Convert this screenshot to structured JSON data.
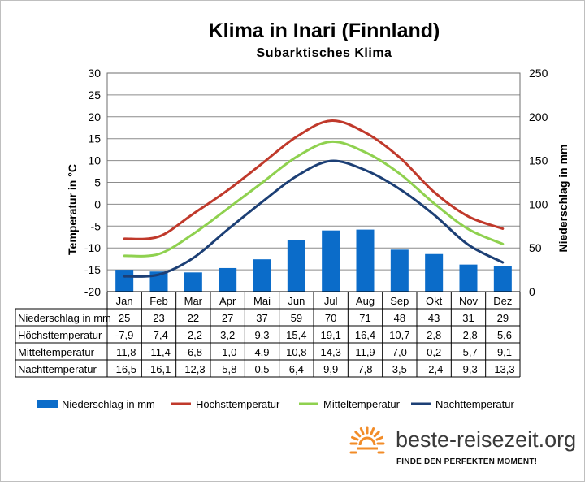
{
  "chart_data": {
    "type": "bar",
    "title": "Klima in Inari (Finnland)",
    "subtitle": "Subarktisches Klima",
    "ylabel": "Temperatur in °C",
    "y2label": "Niederschlag in mm",
    "ylim": [
      -20,
      30
    ],
    "y2lim": [
      0,
      250
    ],
    "yticks": [
      "30",
      "25",
      "20",
      "15",
      "10",
      "5",
      "0",
      "-5",
      "-10",
      "-15",
      "-20"
    ],
    "y2ticks": [
      "250",
      "200",
      "150",
      "100",
      "50",
      "0"
    ],
    "grid": true,
    "legend_position": "bottom",
    "categories": [
      "Jan",
      "Feb",
      "Mar",
      "Apr",
      "Mai",
      "Jun",
      "Jul",
      "Aug",
      "Sep",
      "Okt",
      "Nov",
      "Dez"
    ],
    "series": [
      {
        "name": "Niederschlag in mm",
        "kind": "bar",
        "axis": "right",
        "color": "#0b6cc9",
        "values": [
          25,
          23,
          22,
          27,
          37,
          59,
          70,
          71,
          48,
          43,
          31,
          29
        ],
        "labels": [
          "25",
          "23",
          "22",
          "27",
          "37",
          "59",
          "70",
          "71",
          "48",
          "43",
          "31",
          "29"
        ]
      },
      {
        "name": "Höchsttemperatur",
        "kind": "line",
        "axis": "left",
        "color": "#c0392b",
        "values": [
          -7.9,
          -7.4,
          -2.2,
          3.2,
          9.3,
          15.4,
          19.1,
          16.4,
          10.7,
          2.8,
          -2.8,
          -5.6
        ],
        "labels": [
          "-7,9",
          "-7,4",
          "-2,2",
          "3,2",
          "9,3",
          "15,4",
          "19,1",
          "16,4",
          "10,7",
          "2,8",
          "-2,8",
          "-5,6"
        ]
      },
      {
        "name": "Mitteltemperatur",
        "kind": "line",
        "axis": "left",
        "color": "#8fd14f",
        "values": [
          -11.8,
          -11.4,
          -6.8,
          -1.0,
          4.9,
          10.8,
          14.3,
          11.9,
          7.0,
          0.2,
          -5.7,
          -9.1
        ],
        "labels": [
          "-11,8",
          "-11,4",
          "-6,8",
          "-1,0",
          "4,9",
          "10,8",
          "14,3",
          "11,9",
          "7,0",
          "0,2",
          "-5,7",
          "-9,1"
        ]
      },
      {
        "name": "Nachttemperatur",
        "kind": "line",
        "axis": "left",
        "color": "#1c3f75",
        "values": [
          -16.5,
          -16.1,
          -12.3,
          -5.8,
          0.5,
          6.4,
          9.9,
          7.8,
          3.5,
          -2.4,
          -9.3,
          -13.3
        ],
        "labels": [
          "-16,5",
          "-16,1",
          "-12,3",
          "-5,8",
          "0,5",
          "6,4",
          "9,9",
          "7,8",
          "3,5",
          "-2,4",
          "-9,3",
          "-13,3"
        ]
      }
    ]
  },
  "branding": {
    "site": "beste-reisezeit.org",
    "tagline": "FINDE DEN PERFEKTEN MOMENT!",
    "logo_color": "#f28c28"
  }
}
